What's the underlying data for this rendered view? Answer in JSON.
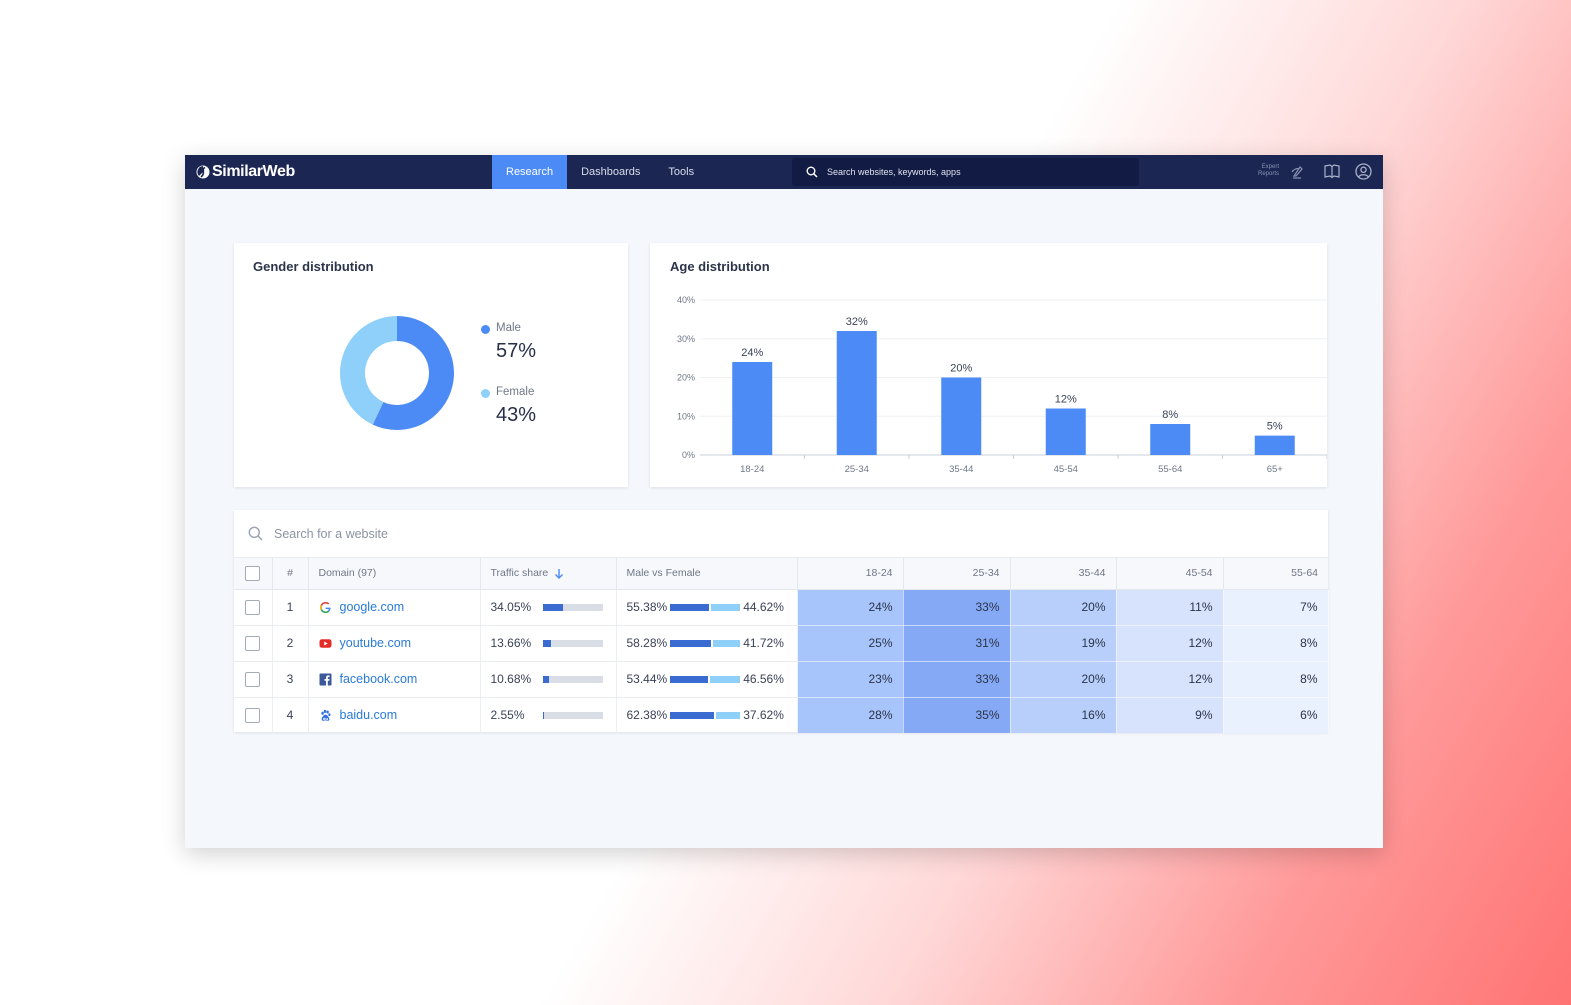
{
  "app": {
    "logo": "SimilarWeb",
    "nav": [
      {
        "label": "Research",
        "active": true
      },
      {
        "label": "Dashboards",
        "active": false
      },
      {
        "label": "Tools",
        "active": false
      }
    ],
    "search_placeholder": "Search websites, keywords, apps",
    "expert_reports_line1": "Expert",
    "expert_reports_line2": "Reports"
  },
  "gender": {
    "title": "Gender distribution",
    "items": [
      {
        "label": "Male",
        "value": "57%",
        "fraction": 0.57,
        "color": "#4c8bf5"
      },
      {
        "label": "Female",
        "value": "43%",
        "fraction": 0.43,
        "color": "#8fd0fb"
      }
    ]
  },
  "age": {
    "title": "Age distribution"
  },
  "chart_data": {
    "type": "bar",
    "title": "Age distribution",
    "categories": [
      "18-24",
      "25-34",
      "35-44",
      "45-54",
      "55-64",
      "65+"
    ],
    "values": [
      24,
      32,
      20,
      12,
      8,
      5
    ],
    "data_labels": [
      "24%",
      "32%",
      "20%",
      "12%",
      "8%",
      "5%"
    ],
    "y_ticks": [
      "0%",
      "10%",
      "20%",
      "30%",
      "40%"
    ],
    "ylim": [
      0,
      40
    ],
    "grid": true,
    "bar_color": "#4c8bf5"
  },
  "table": {
    "search_placeholder": "Search for a website",
    "headers": {
      "num": "#",
      "domain": "Domain (97)",
      "traffic": "Traffic share",
      "gender": "Male vs Female",
      "ages": [
        "18-24",
        "25-34",
        "35-44",
        "45-54",
        "55-64"
      ]
    },
    "rows": [
      {
        "rank": "1",
        "domain": "google.com",
        "icon": "google-icon",
        "traffic": "34.05%",
        "traffic_fraction": 0.3405,
        "male": "55.38%",
        "male_fraction": 0.5538,
        "female": "44.62%",
        "ages": [
          "24%",
          "33%",
          "20%",
          "11%",
          "7%"
        ]
      },
      {
        "rank": "2",
        "domain": "youtube.com",
        "icon": "youtube-icon",
        "traffic": "13.66%",
        "traffic_fraction": 0.1366,
        "male": "58.28%",
        "male_fraction": 0.5828,
        "female": "41.72%",
        "ages": [
          "25%",
          "31%",
          "19%",
          "12%",
          "8%"
        ]
      },
      {
        "rank": "3",
        "domain": "facebook.com",
        "icon": "facebook-icon",
        "traffic": "10.68%",
        "traffic_fraction": 0.1068,
        "male": "53.44%",
        "male_fraction": 0.5344,
        "female": "46.56%",
        "ages": [
          "23%",
          "33%",
          "20%",
          "12%",
          "8%"
        ]
      },
      {
        "rank": "4",
        "domain": "baidu.com",
        "icon": "baidu-icon",
        "traffic": "2.55%",
        "traffic_fraction": 0.0255,
        "male": "62.38%",
        "male_fraction": 0.6238,
        "female": "37.62%",
        "ages": [
          "28%",
          "35%",
          "16%",
          "9%",
          "6%"
        ]
      }
    ],
    "column_colors": [
      "#a7c4fb",
      "#86a9f5",
      "#b8cffb",
      "#d7e3fd",
      "#e9f0fe"
    ]
  }
}
